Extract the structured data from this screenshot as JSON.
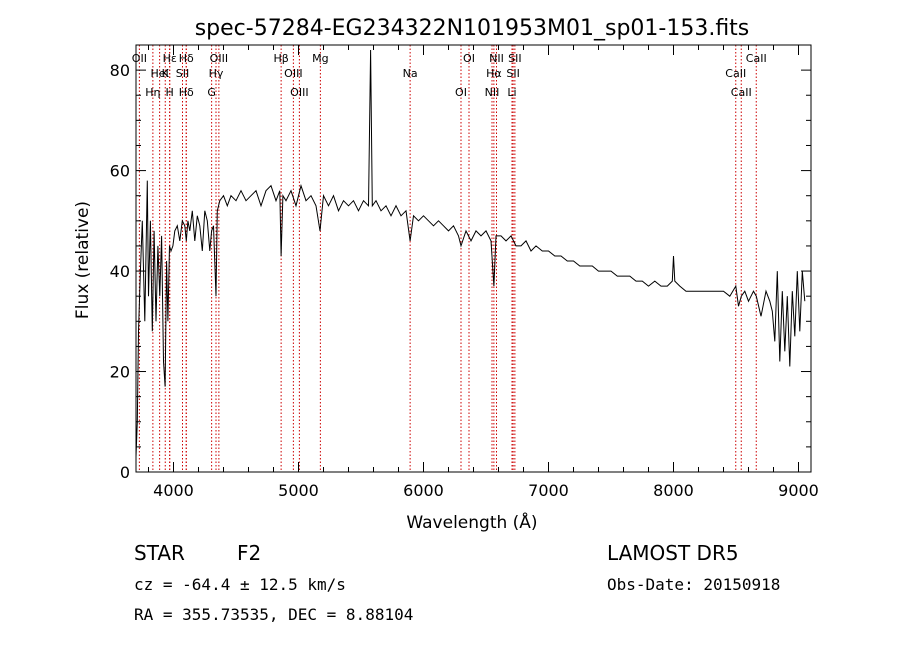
{
  "chart_data": {
    "type": "line",
    "title": "spec-57284-EG234322N101953M01_sp01-153.fits",
    "xlabel": "Wavelength (Å)",
    "ylabel": "Flux (relative)",
    "xlim": [
      3700,
      9100
    ],
    "ylim": [
      0,
      85
    ],
    "xticks": [
      4000,
      5000,
      6000,
      7000,
      8000,
      9000
    ],
    "yticks": [
      0,
      20,
      40,
      60,
      80
    ],
    "grid": false,
    "series": [
      {
        "color": "#000000",
        "x": [
          3700,
          3710,
          3720,
          3735,
          3750,
          3770,
          3790,
          3800,
          3815,
          3830,
          3845,
          3860,
          3875,
          3890,
          3905,
          3920,
          3933,
          3945,
          3955,
          3968,
          3980,
          3995,
          4010,
          4030,
          4050,
          4070,
          4090,
          4102,
          4115,
          4130,
          4150,
          4170,
          4190,
          4210,
          4230,
          4250,
          4270,
          4290,
          4305,
          4320,
          4340,
          4350,
          4370,
          4400,
          4430,
          4460,
          4500,
          4540,
          4580,
          4620,
          4660,
          4700,
          4740,
          4780,
          4820,
          4850,
          4861,
          4875,
          4900,
          4940,
          4980,
          5020,
          5060,
          5100,
          5140,
          5172,
          5200,
          5240,
          5280,
          5320,
          5360,
          5400,
          5440,
          5480,
          5520,
          5560,
          5577,
          5590,
          5620,
          5660,
          5700,
          5740,
          5780,
          5820,
          5860,
          5893,
          5920,
          5960,
          6000,
          6040,
          6080,
          6120,
          6160,
          6200,
          6240,
          6280,
          6300,
          6340,
          6380,
          6420,
          6460,
          6500,
          6540,
          6563,
          6580,
          6620,
          6660,
          6700,
          6740,
          6780,
          6820,
          6860,
          6900,
          6950,
          7000,
          7050,
          7100,
          7150,
          7200,
          7250,
          7300,
          7350,
          7400,
          7450,
          7500,
          7550,
          7600,
          7650,
          7700,
          7750,
          7800,
          7850,
          7900,
          7950,
          7990,
          8000,
          8010,
          8050,
          8100,
          8150,
          8200,
          8250,
          8300,
          8350,
          8400,
          8450,
          8498,
          8520,
          8542,
          8570,
          8600,
          8640,
          8662,
          8700,
          8740,
          8770,
          8790,
          8810,
          8830,
          8850,
          8870,
          8890,
          8910,
          8930,
          8950,
          8970,
          8990,
          9010,
          9030,
          9050
        ],
        "y": [
          3,
          10,
          28,
          40,
          50,
          30,
          58,
          35,
          50,
          28,
          48,
          30,
          45,
          35,
          47,
          22,
          17,
          42,
          30,
          45,
          44,
          45,
          48,
          49,
          46,
          50,
          49,
          46,
          50,
          48,
          52,
          46,
          51,
          49,
          44,
          52,
          50,
          44,
          48,
          49,
          35,
          52,
          54,
          55,
          53,
          55,
          54,
          56,
          54,
          55,
          56,
          53,
          56,
          57,
          54,
          56,
          43,
          55,
          54,
          56,
          53,
          57,
          54,
          55,
          53,
          48,
          55,
          53,
          55,
          52,
          54,
          53,
          54,
          52,
          54,
          53,
          84,
          53,
          54,
          52,
          53,
          51,
          53,
          51,
          52,
          46,
          51,
          50,
          51,
          50,
          49,
          50,
          49,
          48,
          49,
          47,
          45,
          48,
          46,
          48,
          47,
          48,
          46,
          37,
          47,
          47,
          46,
          47,
          45,
          45,
          46,
          44,
          45,
          44,
          44,
          43,
          43,
          42,
          42,
          41,
          41,
          41,
          40,
          40,
          40,
          39,
          39,
          39,
          38,
          38,
          37,
          38,
          37,
          37,
          38,
          43,
          38,
          37,
          36,
          36,
          36,
          36,
          36,
          36,
          36,
          35,
          37,
          33,
          35,
          36,
          34,
          36,
          35,
          31,
          36,
          34,
          32,
          26,
          40,
          22,
          36,
          24,
          35,
          21,
          36,
          27,
          40,
          28,
          40,
          34
        ]
      }
    ],
    "line_markers": [
      {
        "label": "Hδ",
        "wave": 4102
      },
      {
        "label": "K",
        "wave": 3934
      },
      {
        "label": "H",
        "wave": 3969
      },
      {
        "label": "OII",
        "wave": 3727
      },
      {
        "label": "HeI",
        "wave": 3889
      },
      {
        "label": "Hη",
        "wave": 3835
      },
      {
        "label": "Hε",
        "wave": 3970
      },
      {
        "label": "SII",
        "wave": 4072
      },
      {
        "label": "Hδ",
        "wave": 4102
      },
      {
        "label": "OIII",
        "wave": 4363
      },
      {
        "label": "Hγ",
        "wave": 4340
      },
      {
        "label": "G",
        "wave": 4305
      },
      {
        "label": "Hβ",
        "wave": 4861
      },
      {
        "label": "OIII",
        "wave": 4959
      },
      {
        "label": "OIII",
        "wave": 5007
      },
      {
        "label": "Mg",
        "wave": 5175
      },
      {
        "label": "Na",
        "wave": 5893
      },
      {
        "label": "OI",
        "wave": 6300
      },
      {
        "label": "OI",
        "wave": 6364
      },
      {
        "label": "Hα",
        "wave": 6563
      },
      {
        "label": "NII",
        "wave": 6548
      },
      {
        "label": "NII",
        "wave": 6584
      },
      {
        "label": "SII",
        "wave": 6717
      },
      {
        "label": "Li",
        "wave": 6708
      },
      {
        "label": "SII",
        "wave": 6731
      },
      {
        "label": "CaII",
        "wave": 8498
      },
      {
        "label": "CaII",
        "wave": 8542
      },
      {
        "label": "CaII",
        "wave": 8662
      }
    ]
  },
  "footer": {
    "object_class": "STAR",
    "subclass": "F2",
    "cz_text": "cz = -64.4 ± 12.5 km/s",
    "radec_text": "RA = 355.73535, DEC =   8.88104",
    "survey": "LAMOST DR5",
    "obs_date_text": "Obs-Date: 20150918"
  }
}
